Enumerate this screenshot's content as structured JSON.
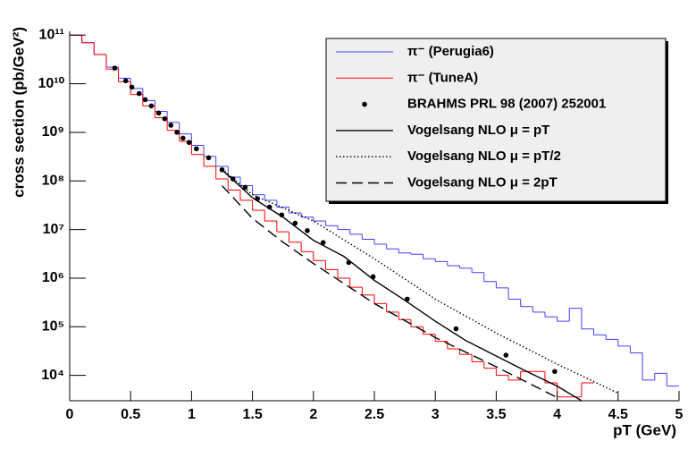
{
  "chart_data": {
    "type": "line",
    "log_y": true,
    "xlabel": "pT (GeV)",
    "ylabel": "cross section (pb/GeV²)",
    "xlim": [
      0,
      5
    ],
    "ylim": [
      3000,
      120000000000
    ],
    "xticks": [
      0,
      0.5,
      1,
      1.5,
      2,
      2.5,
      3,
      3.5,
      4,
      4.5,
      5
    ],
    "yticks": [
      {
        "value": 10000,
        "label": "10⁴"
      },
      {
        "value": 100000,
        "label": "10⁵"
      },
      {
        "value": 1000000,
        "label": "10⁶"
      },
      {
        "value": 10000000,
        "label": "10⁷"
      },
      {
        "value": 100000000,
        "label": "10⁸"
      },
      {
        "value": 1000000000,
        "label": "10⁹"
      },
      {
        "value": 10000000000,
        "label": "10¹⁰"
      },
      {
        "value": 100000000000,
        "label": "10¹¹"
      }
    ],
    "legend": "top-right",
    "series": [
      {
        "name": "π⁻ (Perugia6)",
        "kind": "step",
        "color": "#3f3fff",
        "bins": [
          0,
          0.1,
          0.2,
          0.3,
          0.4,
          0.5,
          0.6,
          0.7,
          0.8,
          0.9,
          1.0,
          1.1,
          1.2,
          1.3,
          1.4,
          1.5,
          1.6,
          1.7,
          1.8,
          1.9,
          2.0,
          2.1,
          2.2,
          2.3,
          2.4,
          2.5,
          2.6,
          2.7,
          2.8,
          2.9,
          3.0,
          3.1,
          3.2,
          3.3,
          3.4,
          3.5,
          3.6,
          3.7,
          3.8,
          3.9,
          4.0,
          4.1,
          4.2,
          4.3,
          4.4,
          4.5,
          4.6,
          4.7,
          4.8,
          4.9,
          5.0
        ],
        "values": [
          100000000000.0,
          70000000000.0,
          40000000000.0,
          22000000000.0,
          13000000000.0,
          8000000000.0,
          4500000000.0,
          2700000000.0,
          1600000000.0,
          930000000.0,
          540000000.0,
          320000000.0,
          200000000.0,
          120000000.0,
          80000000.0,
          52000000.0,
          40000000.0,
          29000000.0,
          22000000.0,
          18000000.0,
          15000000.0,
          12000000.0,
          10000000.0,
          8000000.0,
          6300000.0,
          5000000.0,
          4000000.0,
          3300000.0,
          3100000.0,
          2500000.0,
          2200000.0,
          1800000.0,
          1600000.0,
          1300000.0,
          850000.0,
          630000.0,
          370000.0,
          260000.0,
          200000.0,
          160000.0,
          130000.0,
          240000.0,
          90000.0,
          68000.0,
          55000.0,
          40000.0,
          29000.0,
          8000.0,
          11000.0,
          6000.0
        ]
      },
      {
        "name": "π⁻ (TuneA)",
        "kind": "step",
        "color": "#ff0000",
        "bins": [
          0,
          0.1,
          0.2,
          0.3,
          0.4,
          0.5,
          0.6,
          0.7,
          0.8,
          0.9,
          1.0,
          1.1,
          1.2,
          1.3,
          1.4,
          1.5,
          1.6,
          1.7,
          1.8,
          1.9,
          2.0,
          2.1,
          2.2,
          2.3,
          2.4,
          2.5,
          2.6,
          2.7,
          2.8,
          2.9,
          3.0,
          3.1,
          3.2,
          3.3,
          3.4,
          3.5,
          3.6,
          3.7,
          3.8,
          3.9,
          4.0,
          4.1,
          4.2,
          4.3
        ],
        "values": [
          100000000000.0,
          70000000000.0,
          40000000000.0,
          20000000000.0,
          11000000000.0,
          6000000000.0,
          3500000000.0,
          2000000000.0,
          1100000000.0,
          650000000.0,
          350000000.0,
          200000000.0,
          110000000.0,
          65000000.0,
          40000000.0,
          25000000.0,
          15000000.0,
          9000000.0,
          5500000.0,
          3500000.0,
          2300000.0,
          1500000.0,
          1000000.0,
          650000.0,
          450000.0,
          300000.0,
          200000.0,
          140000.0,
          100000.0,
          70000.0,
          50000.0,
          35000.0,
          27000.0,
          19000.0,
          14000.0,
          10000.0,
          8000.0,
          12000.0,
          12000.0,
          7000.0,
          3600,
          3600,
          7000.0
        ]
      },
      {
        "name": "BRAHMS PRL 98 (2007) 252001",
        "kind": "points",
        "color": "#000000",
        "x": [
          0.37,
          0.46,
          0.51,
          0.57,
          0.62,
          0.67,
          0.73,
          0.78,
          0.83,
          0.88,
          0.93,
          0.98,
          1.04,
          1.14,
          1.25,
          1.34,
          1.44,
          1.54,
          1.64,
          1.74,
          1.85,
          1.95,
          2.08,
          2.29,
          2.49,
          2.77,
          3.17,
          3.58,
          3.98
        ],
        "values": [
          21000000000.0,
          11500000000.0,
          8500000000.0,
          6300000000.0,
          4700000000.0,
          3500000000.0,
          2500000000.0,
          1900000000.0,
          1400000000.0,
          1000000000.0,
          760000000.0,
          620000000.0,
          460000000.0,
          300000000.0,
          170000000.0,
          110000000.0,
          74000000.0,
          43000000.0,
          29000000.0,
          20000000.0,
          13500000.0,
          9500000.0,
          5400000.0,
          2100000.0,
          1070000.0,
          370000.0,
          91000.0,
          26000.0,
          12000.0
        ]
      },
      {
        "name": "Vogelsang NLO μ = pT",
        "kind": "curve",
        "dash": "solid",
        "color": "#000000",
        "x": [
          1.25,
          1.5,
          1.75,
          2,
          2.25,
          2.5,
          2.75,
          3,
          3.25,
          3.5,
          3.75,
          4,
          4.2
        ],
        "values": [
          170000000.0,
          45000000.0,
          18000000.0,
          6000000.0,
          2800000.0,
          900000.0,
          350000.0,
          130000.0,
          52000.0,
          25000.0,
          12000.0,
          6000.0,
          3000.0
        ]
      },
      {
        "name": "Vogelsang NLO μ = pT/2",
        "kind": "curve",
        "dash": "dotted",
        "color": "#000000",
        "x": [
          1.25,
          1.5,
          2,
          2.5,
          3,
          3.5,
          4,
          4.5
        ],
        "values": [
          175000000.0,
          52000000.0,
          15000000.0,
          2500000.0,
          370000.0,
          74000.0,
          17000.0,
          4300.0
        ]
      },
      {
        "name": "Vogelsang NLO μ = 2pT",
        "kind": "curve",
        "dash": "dashed",
        "color": "#000000",
        "x": [
          1.25,
          1.5,
          1.75,
          2,
          2.5,
          3,
          3.5,
          4
        ],
        "values": [
          80000000.0,
          17000000.0,
          5500000.0,
          2000000.0,
          300000.0,
          60000.0,
          15000.0,
          3500.0
        ]
      }
    ]
  }
}
